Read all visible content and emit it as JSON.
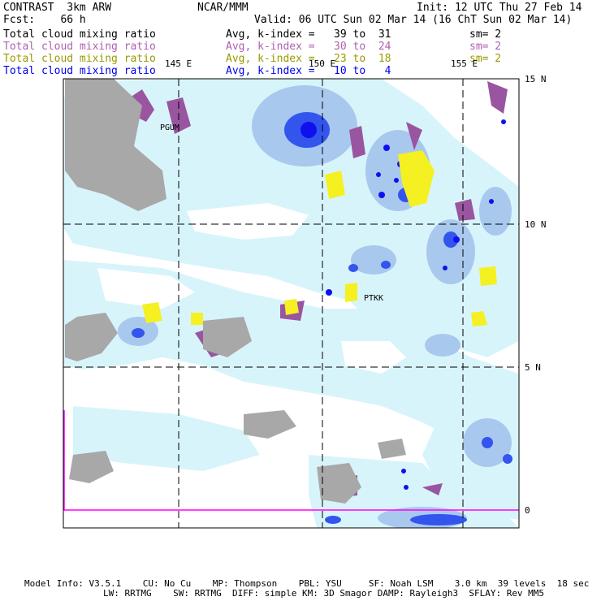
{
  "header": {
    "left1": "CONTRAST  3km ARW",
    "center1": "NCAR/MMM",
    "right1": "Init: 12 UTC Thu 27 Feb 14",
    "left2": "Fcst:    66 h",
    "right2": "Valid: 06 UTC Sun 02 Mar 14 (16 ChT Sun 02 Mar 14)"
  },
  "fields": [
    {
      "label": "Total cloud mixing ratio",
      "avg": "Avg, k-index =   39 to  31",
      "sm": "sm= 2",
      "color": "#000000"
    },
    {
      "label": "Total cloud mixing ratio",
      "avg": "Avg, k-index =   30 to  24",
      "sm": "sm= 2",
      "color": "#b060b0"
    },
    {
      "label": "Total cloud mixing ratio",
      "avg": "Avg, k-index =   23 to  18",
      "sm": "sm= 2",
      "color": "#9a9a00"
    },
    {
      "label": "Total cloud mixing ratio",
      "avg": "Avg, k-index =   10 to   4",
      "sm": "",
      "color": "#0000ee"
    }
  ],
  "map": {
    "lon_labels": [
      "145 E",
      "150 E",
      "155 E"
    ],
    "lat_labels": [
      "15 N",
      "10 N",
      "5 N",
      "0"
    ],
    "stations": [
      "PGUM",
      "PTKK"
    ],
    "colors": {
      "ocean": "#ffffff",
      "light_cloud": "#d8f4fb",
      "mid_cloud": "#a8c8ee",
      "dense_cloud": "#3355ee",
      "core": "#1010ee",
      "purple": "#9a55a0",
      "yellow": "#f5f022",
      "land": "#a8a8a8",
      "magenta": "#ff00ff"
    }
  },
  "footer": {
    "line1": "Model Info: V3.5.1    CU: No Cu    MP: Thompson    PBL: YSU     SF: Noah LSM    3.0 km  39 levels  18 sec",
    "line2": "LW: RRTMG    SW: RRTMG  DIFF: simple KM: 3D Smagor DAMP: Rayleigh3  SFLAY: Rev MM5"
  }
}
